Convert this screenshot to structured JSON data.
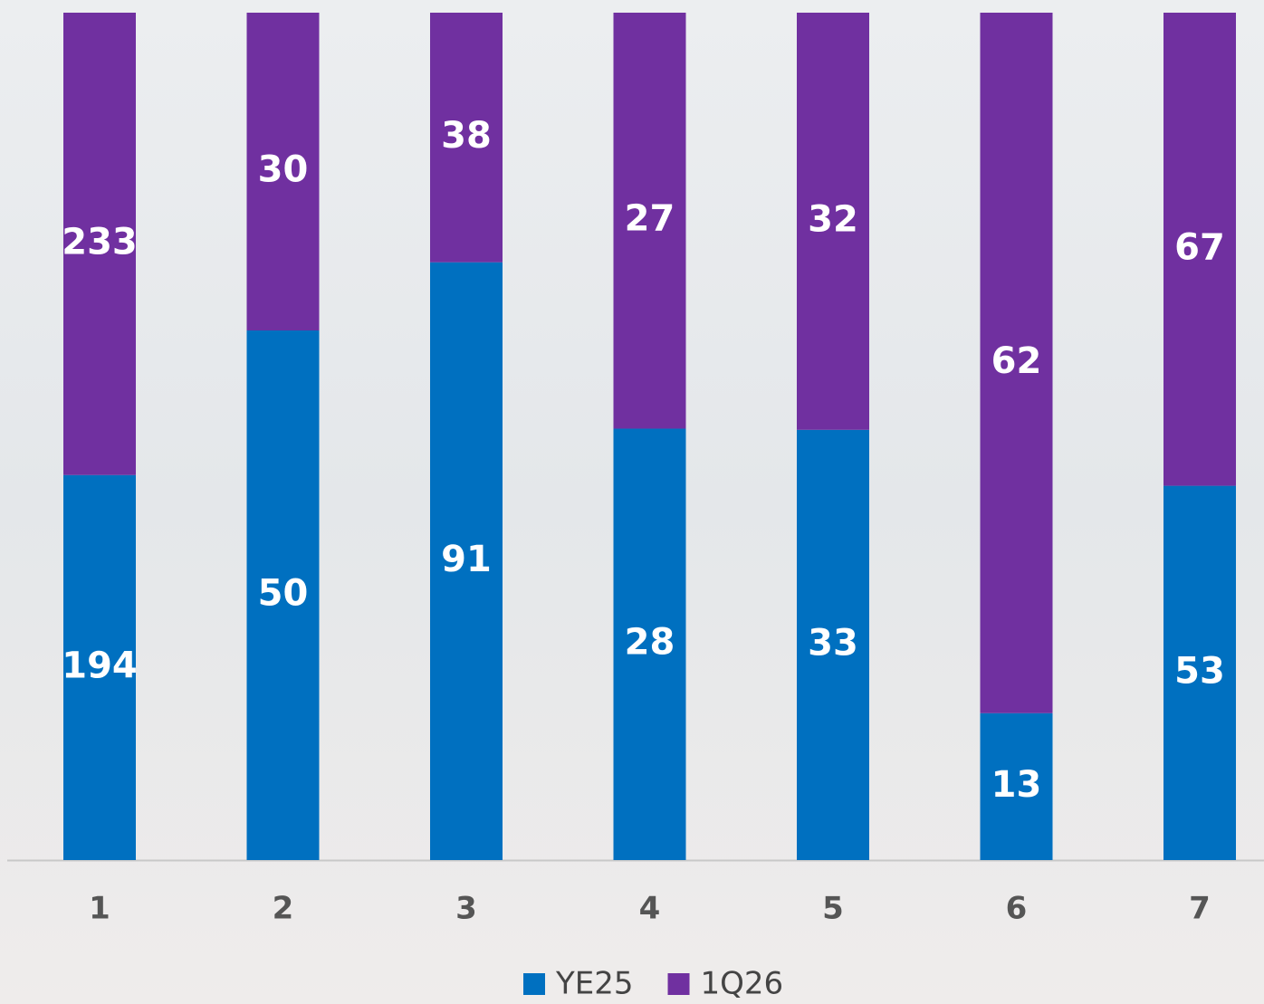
{
  "chart_data": {
    "type": "bar",
    "stacked": "percent",
    "categories": [
      "1",
      "2",
      "3",
      "4",
      "5",
      "6",
      "7"
    ],
    "series": [
      {
        "name": "YE25",
        "color": "#0070c0",
        "values": [
          194,
          50,
          91,
          28,
          33,
          13,
          53
        ]
      },
      {
        "name": "1Q26",
        "color": "#7030a0",
        "values": [
          233,
          30,
          38,
          27,
          32,
          62,
          67
        ]
      }
    ]
  }
}
